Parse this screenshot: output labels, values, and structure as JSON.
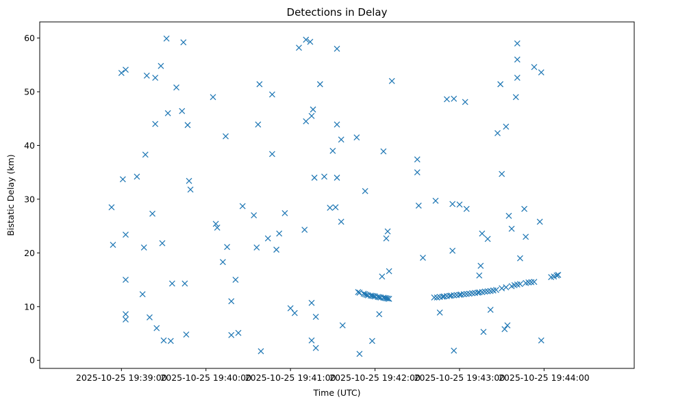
{
  "chart_data": {
    "type": "scatter",
    "title": "Detections in Delay",
    "xlabel": "Time (UTC)",
    "ylabel": "Bistatic Delay (km)",
    "marker": "x",
    "color": "#1f77b4",
    "grid": false,
    "x_unit": "seconds after 2025-10-25 19:39:00",
    "xlim": [
      -58,
      364
    ],
    "ylim": [
      -1.5,
      63
    ],
    "x_ticks": [
      {
        "value": 0,
        "label": "2025-10-25 19:39:00"
      },
      {
        "value": 60,
        "label": "2025-10-25 19:40:00"
      },
      {
        "value": 120,
        "label": "2025-10-25 19:41:00"
      },
      {
        "value": 180,
        "label": "2025-10-25 19:42:00"
      },
      {
        "value": 240,
        "label": "2025-10-25 19:43:00"
      },
      {
        "value": 300,
        "label": "2025-10-25 19:44:00"
      }
    ],
    "y_ticks": [
      {
        "value": 0,
        "label": "0"
      },
      {
        "value": 10,
        "label": "10"
      },
      {
        "value": 20,
        "label": "20"
      },
      {
        "value": 30,
        "label": "30"
      },
      {
        "value": 40,
        "label": "40"
      },
      {
        "value": 50,
        "label": "50"
      },
      {
        "value": 60,
        "label": "60"
      }
    ],
    "points": [
      [
        -7,
        28.5
      ],
      [
        -6,
        21.5
      ],
      [
        0,
        53.5
      ],
      [
        1,
        33.7
      ],
      [
        3,
        54.1
      ],
      [
        3,
        23.4
      ],
      [
        3,
        15
      ],
      [
        3,
        8.6
      ],
      [
        3,
        7.6
      ],
      [
        11,
        34.2
      ],
      [
        15,
        12.3
      ],
      [
        16,
        21
      ],
      [
        17,
        38.3
      ],
      [
        18,
        53
      ],
      [
        20,
        8
      ],
      [
        22,
        27.3
      ],
      [
        24,
        44
      ],
      [
        24,
        52.6
      ],
      [
        25,
        6
      ],
      [
        28,
        54.8
      ],
      [
        29,
        21.8
      ],
      [
        30,
        3.7
      ],
      [
        32,
        59.9
      ],
      [
        33,
        46
      ],
      [
        35,
        3.6
      ],
      [
        36,
        14.3
      ],
      [
        39,
        50.8
      ],
      [
        43,
        46.4
      ],
      [
        44,
        59.2
      ],
      [
        45,
        14.3
      ],
      [
        46,
        4.8
      ],
      [
        47,
        43.8
      ],
      [
        48,
        33.4
      ],
      [
        49,
        31.8
      ],
      [
        65,
        49
      ],
      [
        67,
        25.4
      ],
      [
        68,
        24.7
      ],
      [
        72,
        18.3
      ],
      [
        74,
        41.7
      ],
      [
        75,
        21.1
      ],
      [
        78,
        11
      ],
      [
        78,
        4.7
      ],
      [
        81,
        15
      ],
      [
        83,
        5.1
      ],
      [
        86,
        28.7
      ],
      [
        94,
        27
      ],
      [
        96,
        21
      ],
      [
        97,
        43.9
      ],
      [
        98,
        51.4
      ],
      [
        99,
        1.7
      ],
      [
        104,
        22.7
      ],
      [
        107,
        49.5
      ],
      [
        107,
        38.4
      ],
      [
        110,
        20.6
      ],
      [
        112,
        23.6
      ],
      [
        116,
        27.4
      ],
      [
        120,
        9.7
      ],
      [
        123,
        8.8
      ],
      [
        126,
        58.2
      ],
      [
        130,
        24.3
      ],
      [
        131,
        44.5
      ],
      [
        131,
        59.7
      ],
      [
        134,
        59.3
      ],
      [
        135,
        45.5
      ],
      [
        135,
        3.7
      ],
      [
        135,
        10.7
      ],
      [
        136,
        46.7
      ],
      [
        137,
        34
      ],
      [
        138,
        8.1
      ],
      [
        138,
        2.3
      ],
      [
        141,
        51.4
      ],
      [
        144,
        34.2
      ],
      [
        148,
        28.4
      ],
      [
        150,
        39
      ],
      [
        152,
        28.5
      ],
      [
        153,
        58
      ],
      [
        153,
        34
      ],
      [
        153,
        43.9
      ],
      [
        156,
        41.1
      ],
      [
        156,
        25.8
      ],
      [
        157,
        6.5
      ],
      [
        167,
        41.5
      ],
      [
        169,
        1.2
      ],
      [
        173,
        31.5
      ],
      [
        178,
        3.6
      ],
      [
        183,
        8.6
      ],
      [
        185,
        15.6
      ],
      [
        186,
        38.9
      ],
      [
        188,
        22.7
      ],
      [
        189,
        24
      ],
      [
        190,
        16.6
      ],
      [
        192,
        52
      ],
      [
        210,
        37.4
      ],
      [
        210,
        35
      ],
      [
        211,
        28.8
      ],
      [
        214,
        19.1
      ],
      [
        223,
        29.7
      ],
      [
        226,
        8.9
      ],
      [
        231,
        48.6
      ],
      [
        235,
        29.1
      ],
      [
        235,
        20.4
      ],
      [
        236,
        1.8
      ],
      [
        236,
        48.7
      ],
      [
        240,
        29
      ],
      [
        244,
        48.1
      ],
      [
        245,
        28.2
      ],
      [
        254,
        15.8
      ],
      [
        255,
        17.6
      ],
      [
        256,
        23.6
      ],
      [
        257,
        5.3
      ],
      [
        260,
        22.6
      ],
      [
        262,
        9.4
      ],
      [
        267,
        42.3
      ],
      [
        269,
        51.4
      ],
      [
        270,
        34.7
      ],
      [
        272,
        5.8
      ],
      [
        273,
        43.5
      ],
      [
        274,
        6.5
      ],
      [
        275,
        26.9
      ],
      [
        277,
        24.5
      ],
      [
        280,
        49
      ],
      [
        281,
        59
      ],
      [
        281,
        56
      ],
      [
        281,
        52.6
      ],
      [
        283,
        19
      ],
      [
        286,
        28.2
      ],
      [
        287,
        23
      ],
      [
        293,
        54.6
      ],
      [
        297,
        25.8
      ],
      [
        298,
        53.6
      ],
      [
        298,
        3.7
      ],
      [
        168,
        12.7
      ],
      [
        169,
        12.6
      ],
      [
        172,
        12.4
      ],
      [
        173,
        12.3
      ],
      [
        174,
        12.2
      ],
      [
        175,
        12.1
      ],
      [
        177,
        12.05
      ],
      [
        178,
        12
      ],
      [
        179,
        11.95
      ],
      [
        180,
        11.9
      ],
      [
        182,
        11.8
      ],
      [
        183,
        11.75
      ],
      [
        184,
        11.7
      ],
      [
        186,
        11.65
      ],
      [
        187,
        11.6
      ],
      [
        188,
        11.55
      ],
      [
        189,
        11.5
      ],
      [
        190,
        11.45
      ],
      [
        222,
        11.7
      ],
      [
        224,
        11.7
      ],
      [
        226,
        11.8
      ],
      [
        228,
        11.85
      ],
      [
        229,
        11.9
      ],
      [
        231,
        11.95
      ],
      [
        233,
        12
      ],
      [
        234,
        12.05
      ],
      [
        236,
        12.1
      ],
      [
        238,
        12.15
      ],
      [
        240,
        12.2
      ],
      [
        241,
        12.25
      ],
      [
        243,
        12.3
      ],
      [
        245,
        12.35
      ],
      [
        247,
        12.4
      ],
      [
        249,
        12.5
      ],
      [
        251,
        12.55
      ],
      [
        253,
        12.6
      ],
      [
        254,
        12.65
      ],
      [
        256,
        12.7
      ],
      [
        258,
        12.8
      ],
      [
        260,
        12.85
      ],
      [
        262,
        12.9
      ],
      [
        264,
        13
      ],
      [
        266,
        13.1
      ],
      [
        270,
        13.4
      ],
      [
        273,
        13.6
      ],
      [
        277,
        13.8
      ],
      [
        279,
        14
      ],
      [
        281,
        14.1
      ],
      [
        283,
        14.2
      ],
      [
        287,
        14.4
      ],
      [
        289,
        14.5
      ],
      [
        291,
        14.55
      ],
      [
        293,
        14.6
      ],
      [
        305,
        15.5
      ],
      [
        307,
        15.6
      ],
      [
        309,
        15.8
      ],
      [
        310,
        15.9
      ]
    ]
  }
}
